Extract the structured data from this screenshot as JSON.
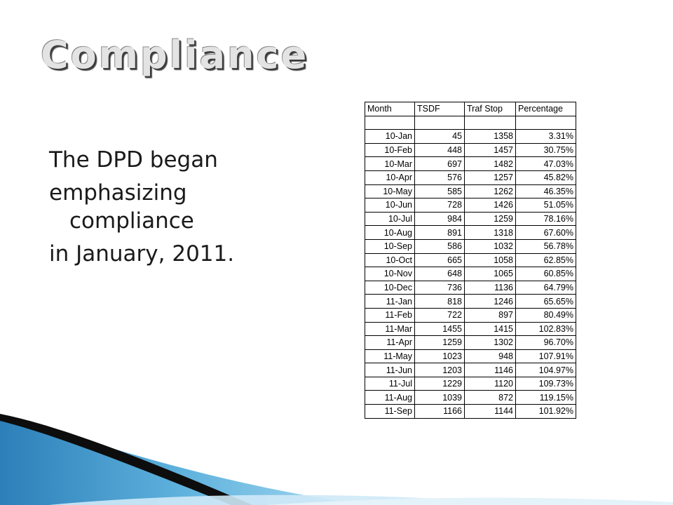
{
  "slide": {
    "title": "Compliance",
    "body_lines": [
      "The DPD began",
      "emphasizing",
      "compliance",
      "in January, 2011."
    ]
  },
  "table": {
    "headers": [
      "Month",
      "TSDF",
      "Traf Stop",
      "Percentage"
    ],
    "rows": [
      [
        "10-Jan",
        "45",
        "1358",
        "3.31%"
      ],
      [
        "10-Feb",
        "448",
        "1457",
        "30.75%"
      ],
      [
        "10-Mar",
        "697",
        "1482",
        "47.03%"
      ],
      [
        "10-Apr",
        "576",
        "1257",
        "45.82%"
      ],
      [
        "10-May",
        "585",
        "1262",
        "46.35%"
      ],
      [
        "10-Jun",
        "728",
        "1426",
        "51.05%"
      ],
      [
        "10-Jul",
        "984",
        "1259",
        "78.16%"
      ],
      [
        "10-Aug",
        "891",
        "1318",
        "67.60%"
      ],
      [
        "10-Sep",
        "586",
        "1032",
        "56.78%"
      ],
      [
        "10-Oct",
        "665",
        "1058",
        "62.85%"
      ],
      [
        "10-Nov",
        "648",
        "1065",
        "60.85%"
      ],
      [
        "10-Dec",
        "736",
        "1136",
        "64.79%"
      ],
      [
        "11-Jan",
        "818",
        "1246",
        "65.65%"
      ],
      [
        "11-Feb",
        "722",
        "897",
        "80.49%"
      ],
      [
        "11-Mar",
        "1455",
        "1415",
        "102.83%"
      ],
      [
        "11-Apr",
        "1259",
        "1302",
        "96.70%"
      ],
      [
        "11-May",
        "1023",
        "948",
        "107.91%"
      ],
      [
        "11-Jun",
        "1203",
        "1146",
        "104.97%"
      ],
      [
        "11-Jul",
        "1229",
        "1120",
        "109.73%"
      ],
      [
        "11-Aug",
        "1039",
        "872",
        "119.15%"
      ],
      [
        "11-Sep",
        "1166",
        "1144",
        "101.92%"
      ]
    ]
  }
}
